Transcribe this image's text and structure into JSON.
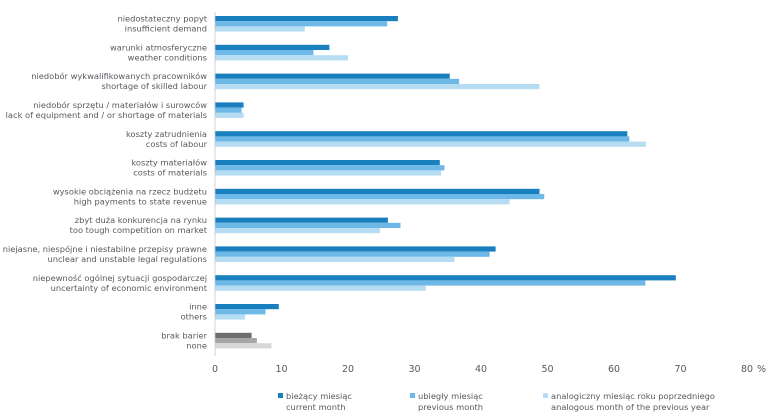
{
  "chart_data": {
    "type": "bar",
    "orientation": "horizontal",
    "categories": [
      [
        "niedostateczny popyt",
        "insufficient demand"
      ],
      [
        "warunki atmosferyczne",
        "weather conditions"
      ],
      [
        "niedobór wykwalifikowanych pracowników",
        "shortage of skilled labour"
      ],
      [
        "niedobór sprzętu / materiałów i surowców",
        "lack of equipment and / or shortage of materials"
      ],
      [
        "koszty zatrudnienia",
        "costs of labour"
      ],
      [
        "koszty materiałów",
        "costs of materials"
      ],
      [
        "wysokie obciążenia na rzecz budżetu",
        "high payments to state revenue"
      ],
      [
        "zbyt duża konkurencja na rynku",
        "too tough competition on market"
      ],
      [
        "niejasne, niespójne i niestabilne przepisy prawne",
        "unclear and unstable legal regulations"
      ],
      [
        "niepewność ogólnej sytuacji gospodarczej",
        "uncertainty of economic environment"
      ],
      [
        "inne",
        "others"
      ],
      [
        "brak barier",
        "none"
      ]
    ],
    "series": [
      {
        "name": [
          "bieżący miesiąc",
          "current month"
        ],
        "color": "#1a7fbf",
        "values": [
          27.5,
          17.2,
          35.3,
          4.3,
          62.0,
          33.8,
          48.8,
          26.0,
          42.2,
          69.3,
          9.6,
          5.5
        ]
      },
      {
        "name": [
          "ubiegły miesiąc",
          "previous month"
        ],
        "color": "#6db8e6",
        "values": [
          25.9,
          14.8,
          36.7,
          4.0,
          62.3,
          34.5,
          49.5,
          27.9,
          41.3,
          64.7,
          7.6,
          6.3
        ]
      },
      {
        "name": [
          "analogiczny miesiąc roku poprzedniego",
          "analogous month of the previous year"
        ],
        "color": "#b5dcf3",
        "values": [
          13.5,
          20.0,
          48.8,
          4.3,
          64.8,
          34.0,
          44.3,
          24.8,
          36.0,
          31.7,
          4.5,
          8.5
        ]
      }
    ],
    "none_colors": [
      "#6e6e6e",
      "#a6a6a6",
      "#d7d7d7"
    ],
    "xlim": [
      0,
      80
    ],
    "xticks": [
      "0",
      "10",
      "20",
      "30",
      "40",
      "50",
      "60",
      "70",
      "80"
    ],
    "xunit": "%",
    "grid": false,
    "legend_position": "bottom"
  }
}
